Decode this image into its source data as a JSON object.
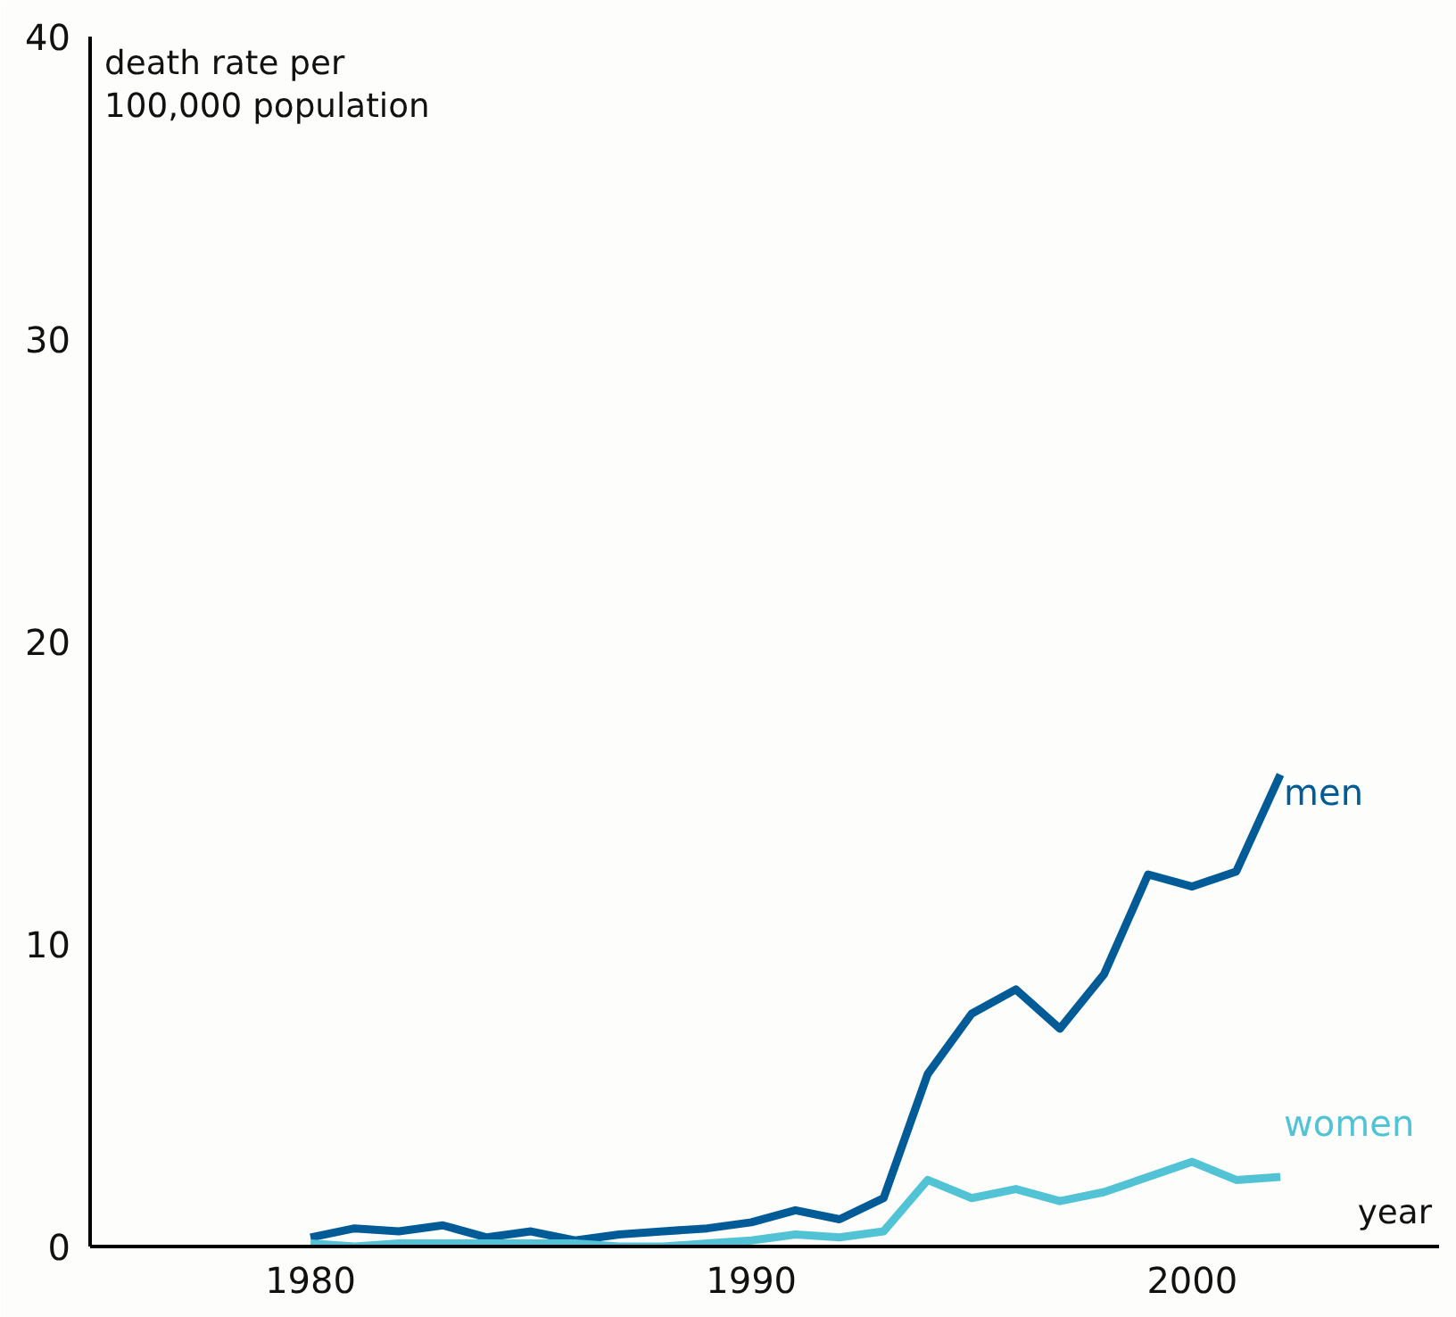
{
  "chart_data": {
    "type": "line",
    "xlabel": "year",
    "ylabel": "death rate per\n100,000 population",
    "x": [
      1980,
      1981,
      1982,
      1983,
      1984,
      1985,
      1986,
      1987,
      1988,
      1989,
      1990,
      1991,
      1992,
      1993,
      1994,
      1995,
      1996,
      1997,
      1998,
      1999,
      2000,
      2001,
      2002
    ],
    "series": [
      {
        "name": "men",
        "color": "#005b96",
        "values": [
          0.3,
          0.6,
          0.5,
          0.7,
          0.3,
          0.5,
          0.2,
          0.4,
          0.5,
          0.6,
          0.8,
          1.2,
          0.9,
          1.6,
          5.7,
          7.7,
          8.5,
          7.2,
          9.0,
          12.3,
          11.9,
          12.4,
          15.6
        ]
      },
      {
        "name": "women",
        "color": "#52c3d4",
        "values": [
          0.1,
          0.0,
          0.1,
          0.1,
          0.1,
          0.1,
          0.1,
          0.0,
          0.0,
          0.1,
          0.2,
          0.4,
          0.3,
          0.5,
          2.2,
          1.6,
          1.9,
          1.5,
          1.8,
          2.3,
          2.8,
          2.2,
          2.3
        ]
      }
    ],
    "xlim": [
      1975,
      2005.6
    ],
    "ylim": [
      0,
      40
    ],
    "xticks": [
      1980,
      1990,
      2000
    ],
    "yticks": [
      0,
      10,
      20,
      30,
      40
    ],
    "grid": false
  }
}
